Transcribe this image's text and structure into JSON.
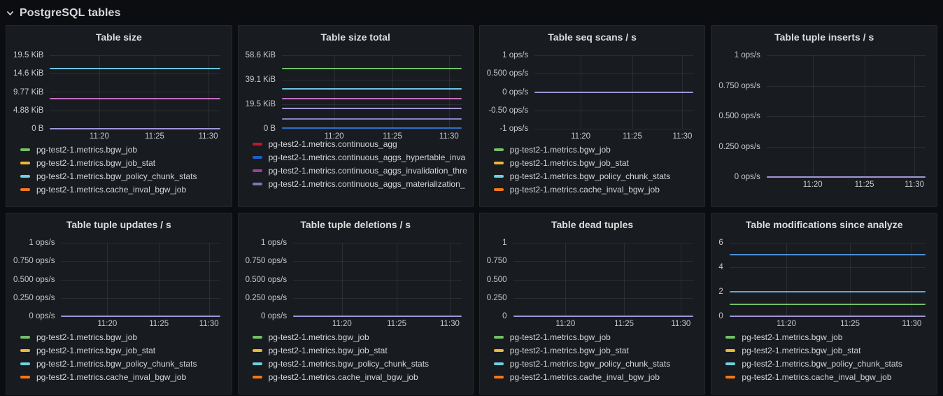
{
  "section": {
    "title": "PostgreSQL tables",
    "collapse_icon": "chevron-down-icon"
  },
  "palette": {
    "green": "#73BF69",
    "yellow": "#EAB839",
    "cyan": "#6ED0E0",
    "orange": "#F2771B",
    "red": "#C4162A",
    "blue": "#1F60C4",
    "magenta": "#9B3F9B",
    "violet": "#8176B5",
    "lavender_line": "#A295D6"
  },
  "bgw_legend": [
    {
      "label": "pg-test2-1.metrics.bgw_job",
      "color": "#73BF69"
    },
    {
      "label": "pg-test2-1.metrics.bgw_job_stat",
      "color": "#EAB839"
    },
    {
      "label": "pg-test2-1.metrics.bgw_policy_chunk_stats",
      "color": "#6ED0E0"
    },
    {
      "label": "pg-test2-1.metrics.cache_inval_bgw_job",
      "color": "#F2771B"
    }
  ],
  "panels": [
    {
      "title": "Table size",
      "type": "line",
      "ymin": 0,
      "ymax": 19.53,
      "y_ticks": [
        {
          "label": "19.5 KiB",
          "value": 19.53
        },
        {
          "label": "14.6 KiB",
          "value": 14.65
        },
        {
          "label": "9.77 KiB",
          "value": 9.77
        },
        {
          "label": "4.88 KiB",
          "value": 4.88
        },
        {
          "label": "0 B",
          "value": 0
        }
      ],
      "x_ticks": [
        "11:20",
        "11:25",
        "11:30"
      ],
      "lines": [
        {
          "color": "#6CC4DE",
          "value": 16
        },
        {
          "color": "#C46EC0",
          "value": 8
        },
        {
          "color": "#A295D6",
          "value": 0
        }
      ],
      "legend": [
        {
          "label": "pg-test2-1.metrics.bgw_job",
          "color": "#73BF69"
        },
        {
          "label": "pg-test2-1.metrics.bgw_job_stat",
          "color": "#EAB839"
        },
        {
          "label": "pg-test2-1.metrics.bgw_policy_chunk_stats",
          "color": "#6ED0E0"
        },
        {
          "label": "pg-test2-1.metrics.cache_inval_bgw_job",
          "color": "#F2771B"
        }
      ]
    },
    {
      "title": "Table size total",
      "type": "line",
      "ymin": 0,
      "ymax": 58.59,
      "y_ticks": [
        {
          "label": "58.6 KiB",
          "value": 58.59
        },
        {
          "label": "39.1 KiB",
          "value": 39.06
        },
        {
          "label": "19.5 KiB",
          "value": 19.53
        },
        {
          "label": "0 B",
          "value": 0
        }
      ],
      "x_ticks": [
        "11:20",
        "11:25",
        "11:30"
      ],
      "lines": [
        {
          "color": "#73BF69",
          "value": 48
        },
        {
          "color": "#6CC4DE",
          "value": 32
        },
        {
          "color": "#C46EC0",
          "value": 24
        },
        {
          "color": "#A295D6",
          "value": 16
        },
        {
          "color": "#8F7FC8",
          "value": 8
        },
        {
          "color": "#2F6BC6",
          "value": 0.4
        }
      ],
      "legend": [
        {
          "label": "pg-test2-1.metrics.continuous_agg",
          "color": "#C4162A"
        },
        {
          "label": "pg-test2-1.metrics.continuous_aggs_hypertable_inva",
          "color": "#1F60C4"
        },
        {
          "label": "pg-test2-1.metrics.continuous_aggs_invalidation_thre",
          "color": "#9B3F9B"
        },
        {
          "label": "pg-test2-1.metrics.continuous_aggs_materialization_",
          "color": "#8176B5"
        }
      ]
    },
    {
      "title": "Table seq scans / s",
      "type": "line",
      "ymin": -1,
      "ymax": 1,
      "y_ticks": [
        {
          "label": "1 ops/s",
          "value": 1
        },
        {
          "label": "0.500 ops/s",
          "value": 0.5
        },
        {
          "label": "0 ops/s",
          "value": 0
        },
        {
          "label": "-0.50 ops/s",
          "value": -0.5
        },
        {
          "label": "-1 ops/s",
          "value": -1
        }
      ],
      "x_ticks": [
        "11:20",
        "11:25",
        "11:30"
      ],
      "lines": [
        {
          "color": "#A295D6",
          "value": 0
        }
      ],
      "legend": [
        {
          "label": "pg-test2-1.metrics.bgw_job",
          "color": "#73BF69"
        },
        {
          "label": "pg-test2-1.metrics.bgw_job_stat",
          "color": "#EAB839"
        },
        {
          "label": "pg-test2-1.metrics.bgw_policy_chunk_stats",
          "color": "#6ED0E0"
        },
        {
          "label": "pg-test2-1.metrics.cache_inval_bgw_job",
          "color": "#F2771B"
        }
      ]
    },
    {
      "title": "Table tuple inserts / s",
      "type": "line",
      "ymin": 0,
      "ymax": 1,
      "y_ticks": [
        {
          "label": "1 ops/s",
          "value": 1
        },
        {
          "label": "0.750 ops/s",
          "value": 0.75
        },
        {
          "label": "0.500 ops/s",
          "value": 0.5
        },
        {
          "label": "0.250 ops/s",
          "value": 0.25
        },
        {
          "label": "0 ops/s",
          "value": 0
        }
      ],
      "x_ticks": [
        "11:20",
        "11:25",
        "11:30"
      ],
      "lines": [
        {
          "color": "#A295D6",
          "value": 0
        }
      ],
      "legend": []
    },
    {
      "title": "Table tuple updates / s",
      "type": "line",
      "ymin": 0,
      "ymax": 1,
      "y_ticks": [
        {
          "label": "1 ops/s",
          "value": 1
        },
        {
          "label": "0.750 ops/s",
          "value": 0.75
        },
        {
          "label": "0.500 ops/s",
          "value": 0.5
        },
        {
          "label": "0.250 ops/s",
          "value": 0.25
        },
        {
          "label": "0 ops/s",
          "value": 0
        }
      ],
      "x_ticks": [
        "11:20",
        "11:25",
        "11:30"
      ],
      "lines": [
        {
          "color": "#A295D6",
          "value": 0
        }
      ],
      "legend": [
        {
          "label": "pg-test2-1.metrics.bgw_job",
          "color": "#73BF69"
        },
        {
          "label": "pg-test2-1.metrics.bgw_job_stat",
          "color": "#EAB839"
        },
        {
          "label": "pg-test2-1.metrics.bgw_policy_chunk_stats",
          "color": "#6ED0E0"
        },
        {
          "label": "pg-test2-1.metrics.cache_inval_bgw_job",
          "color": "#F2771B"
        }
      ]
    },
    {
      "title": "Table tuple deletions / s",
      "type": "line",
      "ymin": 0,
      "ymax": 1,
      "y_ticks": [
        {
          "label": "1 ops/s",
          "value": 1
        },
        {
          "label": "0.750 ops/s",
          "value": 0.75
        },
        {
          "label": "0.500 ops/s",
          "value": 0.5
        },
        {
          "label": "0.250 ops/s",
          "value": 0.25
        },
        {
          "label": "0 ops/s",
          "value": 0
        }
      ],
      "x_ticks": [
        "11:20",
        "11:25",
        "11:30"
      ],
      "lines": [
        {
          "color": "#A295D6",
          "value": 0
        }
      ],
      "legend": [
        {
          "label": "pg-test2-1.metrics.bgw_job",
          "color": "#73BF69"
        },
        {
          "label": "pg-test2-1.metrics.bgw_job_stat",
          "color": "#EAB839"
        },
        {
          "label": "pg-test2-1.metrics.bgw_policy_chunk_stats",
          "color": "#6ED0E0"
        },
        {
          "label": "pg-test2-1.metrics.cache_inval_bgw_job",
          "color": "#F2771B"
        }
      ]
    },
    {
      "title": "Table dead tuples",
      "type": "line",
      "ymin": 0,
      "ymax": 1,
      "y_ticks": [
        {
          "label": "1",
          "value": 1
        },
        {
          "label": "0.750",
          "value": 0.75
        },
        {
          "label": "0.500",
          "value": 0.5
        },
        {
          "label": "0.250",
          "value": 0.25
        },
        {
          "label": "0",
          "value": 0
        }
      ],
      "x_ticks": [
        "11:20",
        "11:25",
        "11:30"
      ],
      "lines": [
        {
          "color": "#A295D6",
          "value": 0
        }
      ],
      "legend": [
        {
          "label": "pg-test2-1.metrics.bgw_job",
          "color": "#73BF69"
        },
        {
          "label": "pg-test2-1.metrics.bgw_job_stat",
          "color": "#EAB839"
        },
        {
          "label": "pg-test2-1.metrics.bgw_policy_chunk_stats",
          "color": "#6ED0E0"
        },
        {
          "label": "pg-test2-1.metrics.cache_inval_bgw_job",
          "color": "#F2771B"
        }
      ]
    },
    {
      "title": "Table modifications since analyze",
      "type": "line",
      "ymin": 0,
      "ymax": 6,
      "y_ticks": [
        {
          "label": "6",
          "value": 6
        },
        {
          "label": "4",
          "value": 4
        },
        {
          "label": "2",
          "value": 2
        },
        {
          "label": "0",
          "value": 0
        }
      ],
      "x_ticks": [
        "11:20",
        "11:25",
        "11:30"
      ],
      "lines": [
        {
          "color": "#4E8ED6",
          "value": 5
        },
        {
          "color": "#5FA8D8",
          "value": 2
        },
        {
          "color": "#73BF69",
          "value": 1
        },
        {
          "color": "#A295D6",
          "value": 0
        }
      ],
      "legend": [
        {
          "label": "pg-test2-1.metrics.bgw_job",
          "color": "#73BF69"
        },
        {
          "label": "pg-test2-1.metrics.bgw_job_stat",
          "color": "#EAB839"
        },
        {
          "label": "pg-test2-1.metrics.bgw_policy_chunk_stats",
          "color": "#6ED0E0"
        },
        {
          "label": "pg-test2-1.metrics.cache_inval_bgw_job",
          "color": "#F2771B"
        }
      ]
    }
  ]
}
